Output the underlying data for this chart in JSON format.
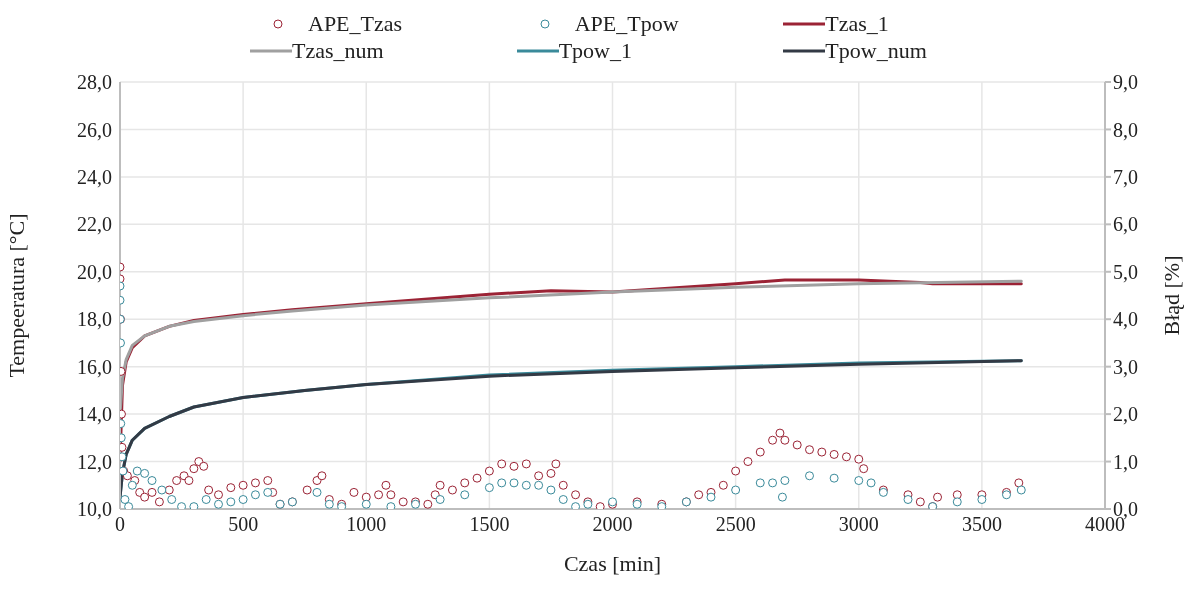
{
  "chart_data": {
    "type": "line",
    "xlabel": "Czas [min]",
    "ylabel": "Tempeeratura [°C]",
    "y2label": "Błąd [%]",
    "legend": "top",
    "grid": true,
    "xlim": [
      0,
      4000
    ],
    "xticks": [
      0,
      500,
      1000,
      1500,
      2000,
      2500,
      3000,
      3500,
      4000
    ],
    "ylim": [
      10,
      28
    ],
    "yticks": [
      {
        "value": 10,
        "label": "10,0"
      },
      {
        "value": 12,
        "label": "12,0"
      },
      {
        "value": 14,
        "label": "14,0"
      },
      {
        "value": 16,
        "label": "16,0"
      },
      {
        "value": 18,
        "label": "18,0"
      },
      {
        "value": 20,
        "label": "20,0"
      },
      {
        "value": 22,
        "label": "22,0"
      },
      {
        "value": 24,
        "label": "24,0"
      },
      {
        "value": 26,
        "label": "26,0"
      },
      {
        "value": 28,
        "label": "28,0"
      }
    ],
    "y2lim": [
      0,
      9
    ],
    "y2ticks": [
      {
        "value": 0,
        "label": "0,0"
      },
      {
        "value": 1,
        "label": "1,0"
      },
      {
        "value": 2,
        "label": "2,0"
      },
      {
        "value": 3,
        "label": "3,0"
      },
      {
        "value": 4,
        "label": "4,0"
      },
      {
        "value": 5,
        "label": "5,0"
      },
      {
        "value": 6,
        "label": "6,0"
      },
      {
        "value": 7,
        "label": "7,0"
      },
      {
        "value": 8,
        "label": "8,0"
      },
      {
        "value": 9,
        "label": "9,0"
      }
    ],
    "series": [
      {
        "name": "APE_Tzas",
        "type": "scatter",
        "axis": "y2",
        "marker": "circle",
        "color": "#9b2335",
        "x": [
          0,
          0,
          2,
          4,
          6,
          8,
          15,
          30,
          60,
          80,
          100,
          130,
          160,
          200,
          230,
          260,
          280,
          300,
          320,
          340,
          360,
          400,
          450,
          500,
          550,
          600,
          620,
          650,
          700,
          760,
          800,
          820,
          850,
          900,
          950,
          1000,
          1050,
          1080,
          1100,
          1150,
          1200,
          1250,
          1280,
          1300,
          1350,
          1400,
          1450,
          1500,
          1550,
          1600,
          1650,
          1700,
          1750,
          1770,
          1800,
          1850,
          1900,
          1950,
          2000,
          2100,
          2200,
          2300,
          2350,
          2400,
          2450,
          2500,
          2550,
          2600,
          2650,
          2680,
          2700,
          2750,
          2800,
          2850,
          2900,
          2950,
          3000,
          3020,
          3100,
          3200,
          3250,
          3300,
          3320,
          3400,
          3500,
          3600,
          3650
        ],
        "values": [
          5.1,
          4.85,
          4.0,
          2.9,
          2.0,
          1.3,
          0.8,
          0.7,
          0.6,
          0.35,
          0.25,
          0.35,
          0.15,
          0.4,
          0.6,
          0.7,
          0.6,
          0.85,
          1.0,
          0.9,
          0.4,
          0.3,
          0.45,
          0.5,
          0.55,
          0.6,
          0.35,
          0.1,
          0.15,
          0.4,
          0.6,
          0.7,
          0.2,
          0.1,
          0.35,
          0.25,
          0.3,
          0.5,
          0.3,
          0.15,
          0.15,
          0.1,
          0.3,
          0.5,
          0.4,
          0.55,
          0.65,
          0.8,
          0.95,
          0.9,
          0.95,
          0.7,
          0.75,
          0.95,
          0.5,
          0.3,
          0.15,
          0.05,
          0.1,
          0.15,
          0.1,
          0.15,
          0.3,
          0.35,
          0.5,
          0.8,
          1.0,
          1.2,
          1.45,
          1.6,
          1.45,
          1.35,
          1.25,
          1.2,
          1.15,
          1.1,
          1.05,
          0.85,
          0.4,
          0.3,
          0.15,
          0.05,
          0.25,
          0.3,
          0.3,
          0.35,
          0.55
        ]
      },
      {
        "name": "APE_Tpow",
        "type": "scatter",
        "axis": "y2",
        "marker": "circle",
        "color": "#3a8a9a",
        "x": [
          0,
          0,
          1,
          2,
          3,
          5,
          8,
          12,
          20,
          35,
          50,
          70,
          100,
          130,
          170,
          210,
          250,
          300,
          350,
          400,
          450,
          500,
          550,
          600,
          650,
          700,
          800,
          850,
          900,
          1000,
          1100,
          1200,
          1300,
          1400,
          1500,
          1550,
          1600,
          1650,
          1700,
          1750,
          1800,
          1850,
          1900,
          2000,
          2100,
          2200,
          2300,
          2400,
          2500,
          2600,
          2650,
          2690,
          2700,
          2800,
          2900,
          3000,
          3050,
          3100,
          3200,
          3300,
          3400,
          3500,
          3600,
          3660
        ],
        "values": [
          4.7,
          4.4,
          4.0,
          3.5,
          1.8,
          1.5,
          1.1,
          0.8,
          0.2,
          0.05,
          0.5,
          0.8,
          0.75,
          0.6,
          0.4,
          0.2,
          0.05,
          0.05,
          0.2,
          0.1,
          0.15,
          0.2,
          0.3,
          0.35,
          0.1,
          0.15,
          0.35,
          0.1,
          0.05,
          0.1,
          0.05,
          0.1,
          0.2,
          0.3,
          0.45,
          0.55,
          0.55,
          0.5,
          0.5,
          0.4,
          0.2,
          0.05,
          0.1,
          0.15,
          0.1,
          0.05,
          0.15,
          0.25,
          0.4,
          0.55,
          0.55,
          0.25,
          0.6,
          0.7,
          0.65,
          0.6,
          0.55,
          0.35,
          0.2,
          0.05,
          0.15,
          0.2,
          0.3,
          0.4
        ]
      },
      {
        "name": "Tzas_1",
        "color": "#9b2335",
        "x": [
          0,
          10,
          25,
          50,
          100,
          200,
          300,
          500,
          700,
          1000,
          1500,
          1750,
          2000,
          2500,
          2700,
          3000,
          3250,
          3300,
          3660
        ],
        "values": [
          12.0,
          15.2,
          16.2,
          16.8,
          17.3,
          17.7,
          17.95,
          18.2,
          18.4,
          18.65,
          19.05,
          19.2,
          19.15,
          19.5,
          19.65,
          19.65,
          19.55,
          19.5,
          19.5
        ]
      },
      {
        "name": "Tzas_num",
        "color": "#a0a0a0",
        "x": [
          0,
          10,
          25,
          50,
          100,
          200,
          300,
          500,
          700,
          1000,
          1500,
          2000,
          2500,
          3000,
          3660
        ],
        "values": [
          14.0,
          15.5,
          16.3,
          16.9,
          17.3,
          17.7,
          17.9,
          18.15,
          18.35,
          18.6,
          18.9,
          19.15,
          19.35,
          19.5,
          19.6
        ]
      },
      {
        "name": "Tpow_1",
        "color": "#3a8a9a",
        "x": [
          0,
          10,
          25,
          50,
          100,
          200,
          300,
          500,
          750,
          1000,
          1500,
          2000,
          2500,
          3000,
          3660
        ],
        "values": [
          10.5,
          11.5,
          12.3,
          12.9,
          13.4,
          13.9,
          14.3,
          14.7,
          15.0,
          15.25,
          15.65,
          15.85,
          16.0,
          16.15,
          16.25
        ]
      },
      {
        "name": "Tpow_num",
        "color": "#333a45",
        "x": [
          0,
          10,
          25,
          50,
          100,
          200,
          300,
          500,
          750,
          1000,
          1500,
          2000,
          2500,
          3000,
          3660
        ],
        "values": [
          10.5,
          11.5,
          12.3,
          12.9,
          13.4,
          13.9,
          14.3,
          14.7,
          15.0,
          15.25,
          15.6,
          15.8,
          15.95,
          16.1,
          16.25
        ]
      }
    ]
  }
}
